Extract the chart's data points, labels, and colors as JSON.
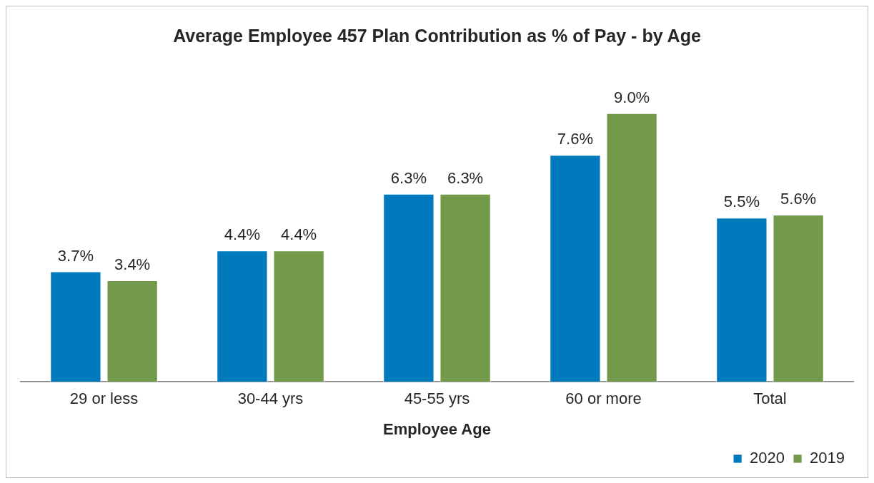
{
  "chart_data": {
    "type": "bar",
    "title": "Average Employee 457 Plan Contribution as % of Pay - by Age",
    "xlabel": "Employee Age",
    "categories": [
      "29 or less",
      "30-44 yrs",
      "45-55 yrs",
      "60 or more",
      "Total"
    ],
    "series": [
      {
        "name": "2020",
        "color": "#0079bd",
        "values": [
          3.7,
          4.4,
          6.3,
          7.6,
          5.5
        ],
        "value_labels": [
          "3.7%",
          "4.4%",
          "6.3%",
          "7.6%",
          "5.5%"
        ]
      },
      {
        "name": "2019",
        "color": "#73994a",
        "values": [
          3.4,
          4.4,
          6.3,
          9.0,
          5.6
        ],
        "value_labels": [
          "3.4%",
          "4.4%",
          "6.3%",
          "9.0%",
          "5.6%"
        ]
      }
    ],
    "legend": "bottom right",
    "grid": false
  }
}
